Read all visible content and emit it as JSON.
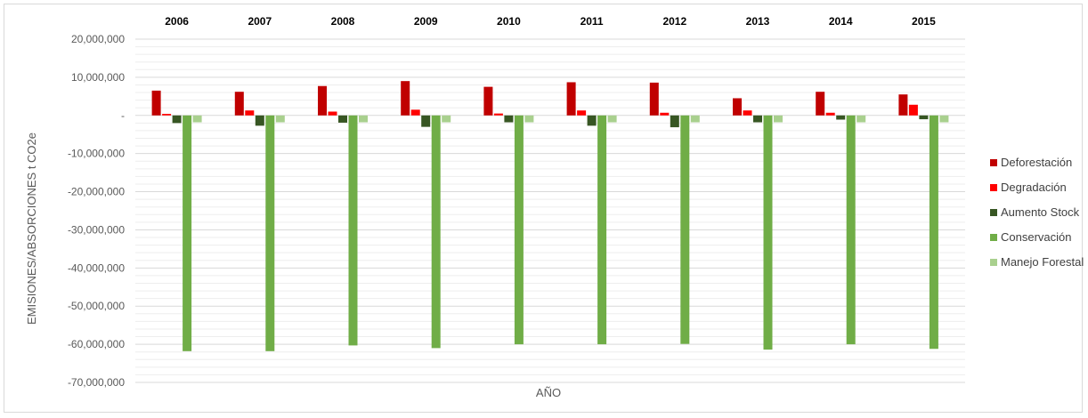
{
  "chart_data": {
    "type": "bar",
    "title": "",
    "xlabel": "AÑO",
    "ylabel": "EMISIONES/ABSORCIONES t CO2e",
    "categories": [
      "2006",
      "2007",
      "2008",
      "2009",
      "2010",
      "2011",
      "2012",
      "2013",
      "2014",
      "2015"
    ],
    "ylim": [
      -70000000,
      20000000
    ],
    "y_ticks": [
      20000000,
      10000000,
      0,
      -10000000,
      -20000000,
      -30000000,
      -40000000,
      -50000000,
      -60000000,
      -70000000
    ],
    "y_tick_labels": [
      "20,000,000",
      "10,000,000",
      "-",
      "-10,000,000",
      "-20,000,000",
      "-30,000,000",
      "-40,000,000",
      "-50,000,000",
      "-60,000,000",
      "-70,000,000"
    ],
    "category_labels_position": "top",
    "grid": true,
    "legend_position": "right",
    "series": [
      {
        "name": "Deforestación",
        "color": "#c00000",
        "values": [
          6500000,
          6200000,
          7700000,
          9000000,
          7500000,
          8700000,
          8600000,
          4500000,
          6200000,
          5500000
        ]
      },
      {
        "name": "Degradación",
        "color": "#ff0000",
        "values": [
          400000,
          1300000,
          1000000,
          1500000,
          500000,
          1300000,
          700000,
          1300000,
          700000,
          2800000
        ]
      },
      {
        "name": "Aumento Stock",
        "color": "#375623",
        "values": [
          -2000000,
          -2700000,
          -1900000,
          -3000000,
          -1800000,
          -2700000,
          -3100000,
          -1800000,
          -1100000,
          -1000000
        ]
      },
      {
        "name": "Conservación",
        "color": "#70ad47",
        "values": [
          -61800000,
          -61800000,
          -60300000,
          -61000000,
          -60000000,
          -60000000,
          -59900000,
          -61400000,
          -60000000,
          -61200000
        ]
      },
      {
        "name": "Manejo Forestal",
        "color": "#a9d08e",
        "values": [
          -1800000,
          -1800000,
          -1800000,
          -1800000,
          -1800000,
          -1800000,
          -1800000,
          -1800000,
          -1800000,
          -1800000
        ]
      }
    ]
  }
}
